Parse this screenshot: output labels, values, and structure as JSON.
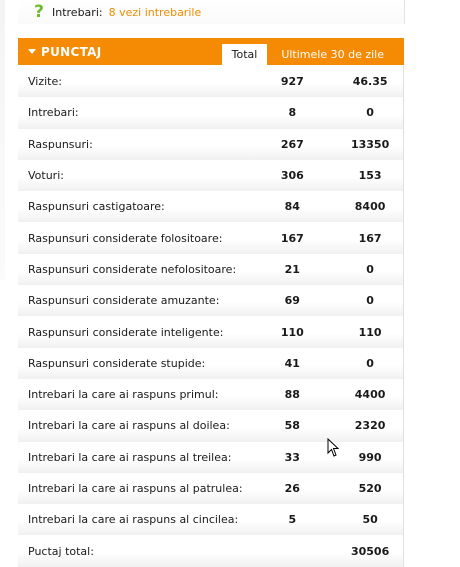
{
  "top": {
    "label": "Intrebari:",
    "link": "8 vezi intrebarile"
  },
  "panel": {
    "title": "PUNCTAJ",
    "tabs": [
      {
        "label": "Total",
        "active": true
      },
      {
        "label": "Ultimele 30 de zile",
        "active": false
      }
    ]
  },
  "rows": [
    {
      "label": "Vizite:",
      "total": "927",
      "last30": "46.35"
    },
    {
      "label": "Intrebari:",
      "total": "8",
      "last30": "0"
    },
    {
      "label": "Raspunsuri:",
      "total": "267",
      "last30": "13350"
    },
    {
      "label": "Voturi:",
      "total": "306",
      "last30": "153"
    },
    {
      "label": "Raspunsuri castigatoare:",
      "total": "84",
      "last30": "8400"
    },
    {
      "label": "Raspunsuri considerate folositoare:",
      "total": "167",
      "last30": "167"
    },
    {
      "label": "Raspunsuri considerate nefolositoare:",
      "total": "21",
      "last30": "0"
    },
    {
      "label": "Raspunsuri considerate amuzante:",
      "total": "69",
      "last30": "0"
    },
    {
      "label": "Raspunsuri considerate inteligente:",
      "total": "110",
      "last30": "110"
    },
    {
      "label": "Raspunsuri considerate stupide:",
      "total": "41",
      "last30": "0"
    },
    {
      "label": "Intrebari la care ai raspuns primul:",
      "total": "88",
      "last30": "4400"
    },
    {
      "label": "Intrebari la care ai raspuns al doilea:",
      "total": "58",
      "last30": "2320"
    },
    {
      "label": "Intrebari la care ai raspuns al treilea:",
      "total": "33",
      "last30": "990"
    },
    {
      "label": "Intrebari la care ai raspuns al patrulea:",
      "total": "26",
      "last30": "520"
    },
    {
      "label": "Intrebari la care ai raspuns al cincilea:",
      "total": "5",
      "last30": "50"
    },
    {
      "label": "Puctaj total:",
      "total": "",
      "last30": "30506"
    }
  ],
  "colors": {
    "accent": "#f58a05",
    "link": "#f08c00",
    "question_icon": "#6dbb2c"
  }
}
